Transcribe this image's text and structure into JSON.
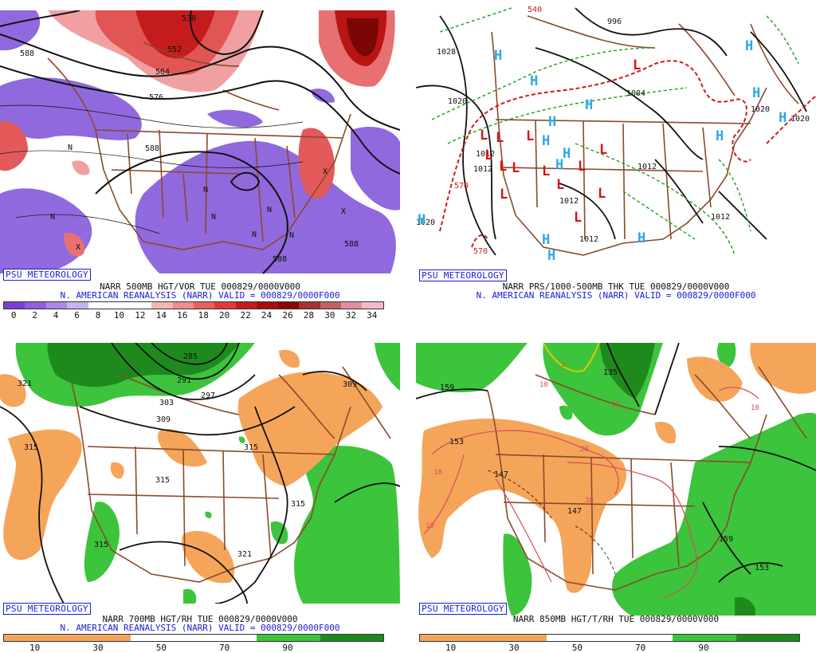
{
  "badge": "PSU METEOROLOGY",
  "panels": [
    {
      "id": "p1",
      "caption1": "NARR 500MB HGT/VOR TUE 000829/0000V000",
      "caption2": "N. AMERICAN REANALYSIS (NARR) VALID = 000829/0000F000",
      "scale_ticks": [
        "0",
        "2",
        "4",
        "6",
        "8",
        "10",
        "12",
        "14",
        "16",
        "18",
        "20",
        "22",
        "24",
        "26",
        "28",
        "30",
        "32",
        "34"
      ],
      "scale_colors": [
        "#7a3fd6",
        "#8f5fe0",
        "#a988e8",
        "#c8b3f0",
        "#ffffff",
        "#ffffff",
        "#ffffff",
        "#f6b5b5",
        "#ef8c8c",
        "#e86060",
        "#df3a3a",
        "#c41c1c",
        "#a50f0f",
        "#8a0808",
        "#a83030",
        "#c46060",
        "#e08f9f",
        "#f4b8c8"
      ],
      "contour_labels": [
        "530",
        "552",
        "564",
        "576",
        "588",
        "588",
        "588",
        "588"
      ],
      "N_labels": [
        "N",
        "N",
        "N",
        "N",
        "N",
        "N",
        "N"
      ],
      "X_labels": [
        "X",
        "X",
        "X"
      ]
    },
    {
      "id": "p2",
      "caption1": "NARR PRS/1000-500MB THK TUE 000829/0000V000",
      "caption2": "N. AMERICAN REANALYSIS (NARR) VALID = 000829/0000F000",
      "isobar_labels": [
        "1028",
        "1020",
        "1012",
        "1012",
        "1012",
        "1012",
        "1012",
        "1012",
        "1020",
        "1020",
        "1020",
        "996",
        "1004"
      ],
      "thickness_labels": [
        "540",
        "570",
        "570"
      ],
      "H": "H",
      "L": "L"
    },
    {
      "id": "p3",
      "caption1": "NARR 700MB HGT/RH TUE 000829/0000V000",
      "caption2": "N. AMERICAN REANALYSIS (NARR) VALID = 000829/0000F000",
      "scale_ticks": [
        "10",
        "30",
        "50",
        "70",
        "90"
      ],
      "contour_labels": [
        "321",
        "285",
        "291",
        "297",
        "303",
        "309",
        "315",
        "315",
        "315",
        "315",
        "315",
        "321",
        "309"
      ]
    },
    {
      "id": "p4",
      "caption1": "NARR 850MB HGT/T/RH TUE 000829/0000V000",
      "scale_ticks": [
        "10",
        "30",
        "50",
        "70",
        "90"
      ],
      "contour_labels": [
        "159",
        "153",
        "147",
        "147",
        "135",
        "159",
        "153"
      ],
      "temp_labels": [
        "0",
        "10",
        "10",
        "10",
        "10",
        "20",
        "30",
        "10"
      ]
    }
  ],
  "colors": {
    "rh_dry": "#f5a55a",
    "rh_moist": "#3cc43c",
    "rh_very_moist": "#1e8a1e",
    "vort_neg": "#7a4fd6",
    "vort_pos": "#e04848",
    "border": "#8b4a2b",
    "isobar": "#111111",
    "thk_green": "#1aa01a",
    "thk_red": "#d01a1a",
    "H_color": "#2aa8e8",
    "L_color": "#e01010"
  }
}
